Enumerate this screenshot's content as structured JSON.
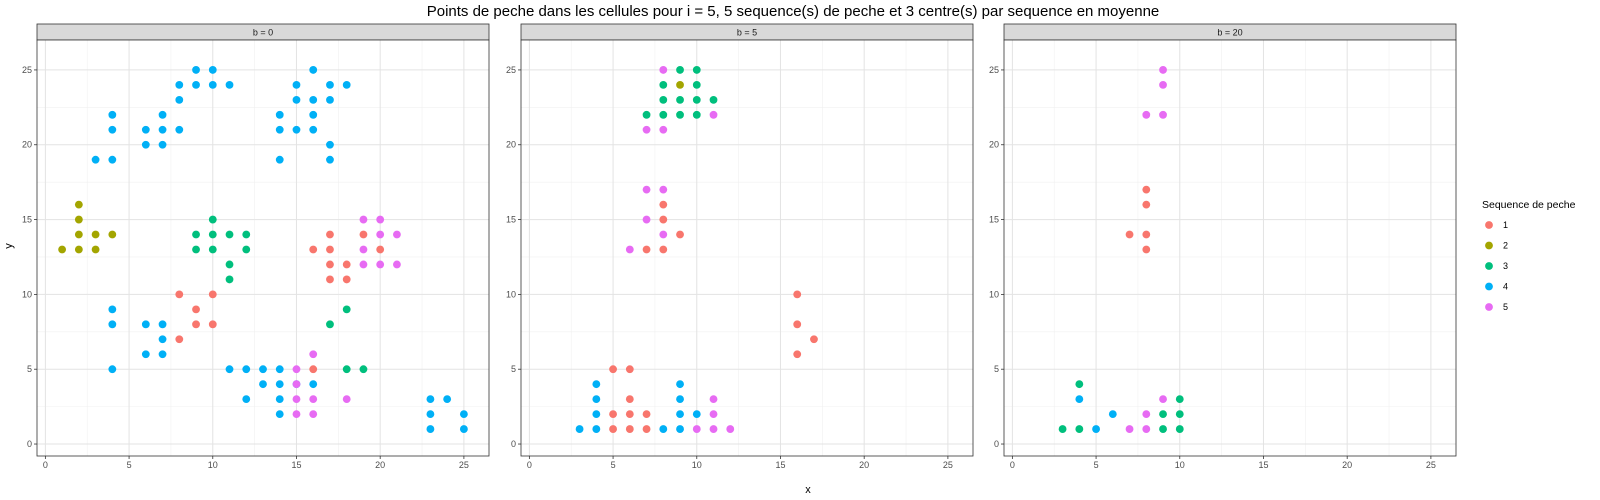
{
  "chart_data": {
    "type": "scatter",
    "title": "Points de peche dans les cellules pour i = 5, 5 sequence(s) de peche et 3 centre(s) par sequence en moyenne",
    "xlabel": "x",
    "ylabel": "y",
    "xlim": [
      -0.5,
      26.5
    ],
    "ylim": [
      -0.8,
      27
    ],
    "x_ticks": [
      0,
      5,
      10,
      15,
      20,
      25
    ],
    "y_ticks": [
      0,
      5,
      10,
      15,
      20,
      25
    ],
    "grid": true,
    "legend": {
      "title": "Sequence de peche",
      "position": "right",
      "entries": [
        {
          "label": "1",
          "color": "#F8766D"
        },
        {
          "label": "2",
          "color": "#A3A500"
        },
        {
          "label": "3",
          "color": "#00BF7D"
        },
        {
          "label": "4",
          "color": "#00B0F6"
        },
        {
          "label": "5",
          "color": "#E76BF3"
        }
      ]
    },
    "facets": [
      {
        "label": "b = 0",
        "series": [
          {
            "name": "1",
            "points": [
              [
                8,
                7
              ],
              [
                9,
                8
              ],
              [
                9,
                9
              ],
              [
                8,
                10
              ],
              [
                10,
                8
              ],
              [
                10,
                10
              ],
              [
                16,
                5
              ],
              [
                16,
                13
              ],
              [
                17,
                11
              ],
              [
                17,
                12
              ],
              [
                17,
                13
              ],
              [
                17,
                14
              ],
              [
                18,
                11
              ],
              [
                18,
                12
              ],
              [
                19,
                14
              ],
              [
                20,
                13
              ]
            ]
          },
          {
            "name": "2",
            "points": [
              [
                1,
                13
              ],
              [
                2,
                13
              ],
              [
                2,
                14
              ],
              [
                2,
                15
              ],
              [
                2,
                16
              ],
              [
                3,
                13
              ],
              [
                3,
                14
              ],
              [
                4,
                14
              ]
            ]
          },
          {
            "name": "3",
            "points": [
              [
                9,
                13
              ],
              [
                9,
                14
              ],
              [
                10,
                13
              ],
              [
                10,
                14
              ],
              [
                10,
                15
              ],
              [
                11,
                11
              ],
              [
                11,
                12
              ],
              [
                11,
                14
              ],
              [
                12,
                13
              ],
              [
                12,
                14
              ],
              [
                17,
                8
              ],
              [
                18,
                5
              ],
              [
                18,
                9
              ],
              [
                19,
                5
              ]
            ]
          },
          {
            "name": "4",
            "points": [
              [
                3,
                19
              ],
              [
                4,
                19
              ],
              [
                4,
                21
              ],
              [
                4,
                22
              ],
              [
                6,
                20
              ],
              [
                6,
                21
              ],
              [
                7,
                20
              ],
              [
                7,
                21
              ],
              [
                7,
                22
              ],
              [
                8,
                21
              ],
              [
                8,
                23
              ],
              [
                8,
                24
              ],
              [
                9,
                24
              ],
              [
                9,
                25
              ],
              [
                10,
                24
              ],
              [
                10,
                25
              ],
              [
                11,
                24
              ],
              [
                14,
                19
              ],
              [
                14,
                21
              ],
              [
                14,
                22
              ],
              [
                15,
                21
              ],
              [
                15,
                23
              ],
              [
                15,
                24
              ],
              [
                16,
                21
              ],
              [
                16,
                22
              ],
              [
                16,
                23
              ],
              [
                16,
                25
              ],
              [
                17,
                19
              ],
              [
                17,
                20
              ],
              [
                17,
                23
              ],
              [
                17,
                24
              ],
              [
                18,
                24
              ],
              [
                4,
                5
              ],
              [
                4,
                8
              ],
              [
                4,
                9
              ],
              [
                6,
                6
              ],
              [
                6,
                8
              ],
              [
                7,
                6
              ],
              [
                7,
                7
              ],
              [
                7,
                8
              ],
              [
                11,
                5
              ],
              [
                12,
                3
              ],
              [
                12,
                5
              ],
              [
                13,
                4
              ],
              [
                13,
                5
              ],
              [
                14,
                2
              ],
              [
                14,
                3
              ],
              [
                14,
                4
              ],
              [
                14,
                5
              ],
              [
                15,
                4
              ],
              [
                16,
                4
              ],
              [
                23,
                1
              ],
              [
                23,
                2
              ],
              [
                23,
                3
              ],
              [
                24,
                3
              ],
              [
                25,
                1
              ],
              [
                25,
                2
              ]
            ]
          },
          {
            "name": "5",
            "points": [
              [
                15,
                2
              ],
              [
                15,
                3
              ],
              [
                15,
                4
              ],
              [
                15,
                5
              ],
              [
                16,
                2
              ],
              [
                16,
                3
              ],
              [
                16,
                6
              ],
              [
                18,
                3
              ],
              [
                19,
                12
              ],
              [
                19,
                13
              ],
              [
                19,
                15
              ],
              [
                20,
                12
              ],
              [
                20,
                14
              ],
              [
                20,
                15
              ],
              [
                21,
                12
              ],
              [
                21,
                14
              ]
            ]
          }
        ]
      },
      {
        "label": "b = 5",
        "series": [
          {
            "name": "1",
            "points": [
              [
                5,
                1
              ],
              [
                5,
                2
              ],
              [
                5,
                5
              ],
              [
                6,
                1
              ],
              [
                6,
                2
              ],
              [
                6,
                3
              ],
              [
                6,
                5
              ],
              [
                7,
                1
              ],
              [
                7,
                2
              ],
              [
                7,
                13
              ],
              [
                8,
                13
              ],
              [
                8,
                15
              ],
              [
                8,
                16
              ],
              [
                9,
                14
              ],
              [
                16,
                6
              ],
              [
                16,
                8
              ],
              [
                16,
                10
              ],
              [
                17,
                7
              ]
            ]
          },
          {
            "name": "2",
            "points": [
              [
                9,
                24
              ]
            ]
          },
          {
            "name": "3",
            "points": [
              [
                7,
                22
              ],
              [
                8,
                22
              ],
              [
                8,
                23
              ],
              [
                8,
                24
              ],
              [
                9,
                22
              ],
              [
                9,
                23
              ],
              [
                9,
                25
              ],
              [
                10,
                22
              ],
              [
                10,
                23
              ],
              [
                10,
                24
              ],
              [
                10,
                25
              ],
              [
                11,
                23
              ]
            ]
          },
          {
            "name": "4",
            "points": [
              [
                3,
                1
              ],
              [
                4,
                1
              ],
              [
                4,
                2
              ],
              [
                4,
                3
              ],
              [
                4,
                4
              ],
              [
                8,
                1
              ],
              [
                9,
                1
              ],
              [
                9,
                2
              ],
              [
                9,
                3
              ],
              [
                9,
                4
              ],
              [
                10,
                2
              ]
            ]
          },
          {
            "name": "5",
            "points": [
              [
                6,
                13
              ],
              [
                7,
                15
              ],
              [
                7,
                17
              ],
              [
                7,
                21
              ],
              [
                8,
                14
              ],
              [
                8,
                17
              ],
              [
                8,
                21
              ],
              [
                8,
                25
              ],
              [
                10,
                1
              ],
              [
                11,
                1
              ],
              [
                11,
                2
              ],
              [
                11,
                3
              ],
              [
                11,
                22
              ],
              [
                12,
                1
              ]
            ]
          }
        ]
      },
      {
        "label": "b = 20",
        "series": [
          {
            "name": "1",
            "points": [
              [
                7,
                14
              ],
              [
                8,
                13
              ],
              [
                8,
                14
              ],
              [
                8,
                16
              ],
              [
                8,
                17
              ]
            ]
          },
          {
            "name": "3",
            "points": [
              [
                3,
                1
              ],
              [
                4,
                1
              ],
              [
                4,
                4
              ],
              [
                9,
                1
              ],
              [
                9,
                2
              ],
              [
                10,
                1
              ],
              [
                10,
                2
              ],
              [
                10,
                3
              ]
            ]
          },
          {
            "name": "4",
            "points": [
              [
                4,
                3
              ],
              [
                5,
                1
              ],
              [
                6,
                2
              ]
            ]
          },
          {
            "name": "5",
            "points": [
              [
                7,
                1
              ],
              [
                8,
                1
              ],
              [
                8,
                2
              ],
              [
                8,
                22
              ],
              [
                9,
                3
              ],
              [
                9,
                22
              ],
              [
                9,
                24
              ],
              [
                9,
                25
              ]
            ]
          }
        ]
      }
    ]
  }
}
